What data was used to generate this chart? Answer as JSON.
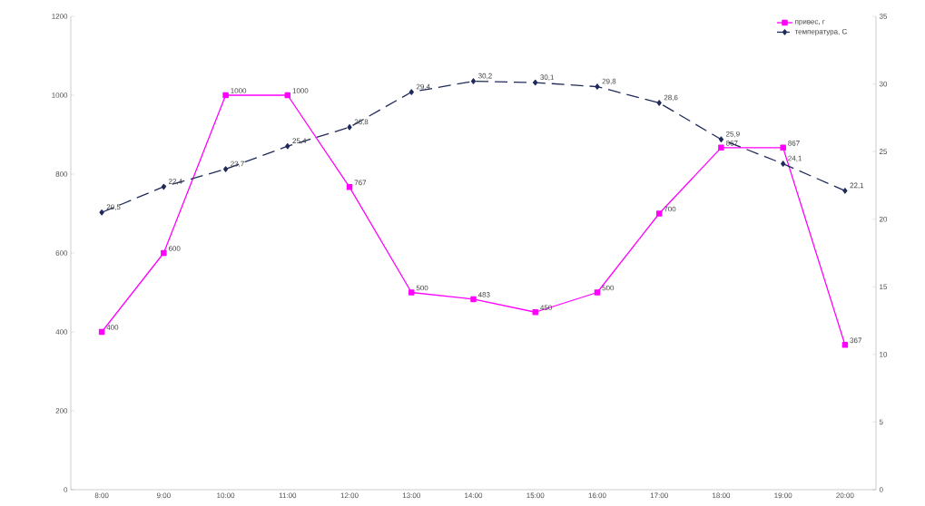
{
  "chart_data": {
    "type": "line",
    "categories": [
      "8:00",
      "9:00",
      "10:00",
      "11:00",
      "12:00",
      "13:00",
      "14:00",
      "15:00",
      "16:00",
      "17:00",
      "18:00",
      "19:00",
      "20:00"
    ],
    "series": [
      {
        "name": "привес, г",
        "color": "#ff00ff",
        "marker": "square",
        "line_style": "solid",
        "values": [
          400,
          600,
          1000,
          1000,
          767,
          500,
          483,
          450,
          500,
          700,
          867,
          867,
          367
        ],
        "value_labels": [
          "400",
          "600",
          "1000",
          "1000",
          "767",
          "500",
          "483",
          "450",
          "500",
          "700",
          "867",
          "867",
          "367"
        ]
      },
      {
        "name": "температура, С",
        "color": "#1f2a5a",
        "marker": "diamond",
        "line_style": "dashed",
        "axis": "y2",
        "values": [
          20.5,
          22.4,
          23.7,
          25.4,
          26.8,
          29.4,
          30.2,
          30.1,
          29.8,
          28.6,
          25.9,
          24.1,
          22.1
        ],
        "value_labels": [
          "20,5",
          "22,4",
          "23,7",
          "25,4",
          "26,8",
          "29,4",
          "30,2",
          "30,1",
          "29,8",
          "28,6",
          "25,9",
          "24,1",
          "22,1"
        ]
      }
    ],
    "ylim": [
      0,
      1200
    ],
    "yticks": [
      0,
      200,
      400,
      600,
      800,
      1000,
      1200
    ],
    "y2lim": [
      0,
      35
    ],
    "y2ticks": [
      0,
      5,
      10,
      15,
      20,
      25,
      30,
      35
    ],
    "grid": false,
    "legend": "top right"
  }
}
